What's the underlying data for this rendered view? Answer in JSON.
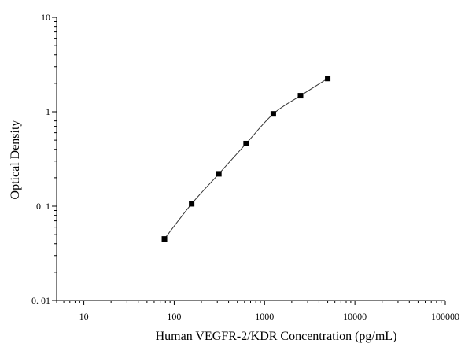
{
  "chart_data": {
    "type": "scatter",
    "title": "",
    "xlabel": "Human VEGFR-2/KDR Concentration (pg/mL)",
    "ylabel": "Optical Density",
    "x_scale": "log",
    "y_scale": "log",
    "xlim": [
      5,
      100000
    ],
    "ylim": [
      0.01,
      10
    ],
    "x_ticks": [
      10,
      100,
      1000,
      10000,
      100000
    ],
    "x_tick_labels": [
      "10",
      "100",
      "1000",
      "10000",
      "100000"
    ],
    "y_ticks": [
      0.01,
      0.1,
      1,
      10
    ],
    "y_tick_labels": [
      "0. 01",
      "0. 1",
      "1",
      "10"
    ],
    "grid": false,
    "legend": "none",
    "marker": "square",
    "fit_line": true,
    "colors": {
      "marker": "#000000",
      "line": "#333333",
      "axis": "#000000"
    },
    "series": [
      {
        "x": [
          78,
          156,
          312,
          625,
          1250,
          2500,
          5000
        ],
        "y": [
          0.045,
          0.106,
          0.22,
          0.46,
          0.95,
          1.48,
          2.25
        ]
      }
    ]
  }
}
